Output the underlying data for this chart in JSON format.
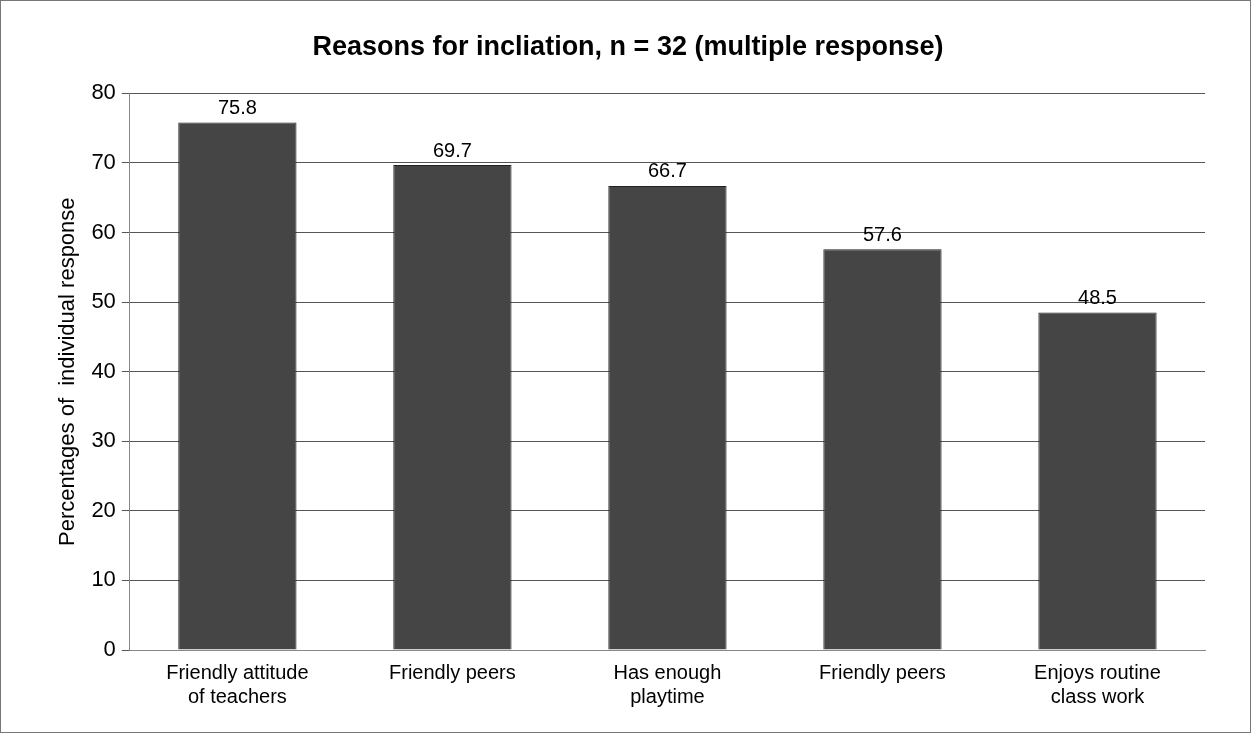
{
  "chart_data": {
    "type": "bar",
    "title": "Reasons for incliation, n = 32 (multiple response)",
    "ylabel": "Percentages of  individual response",
    "categories": [
      "Friendly attitude of teachers",
      "Friendly peers",
      "Has enough playtime",
      "Friendly peers",
      "Enjoys routine class work"
    ],
    "values": [
      75.8,
      69.7,
      66.7,
      57.6,
      48.5
    ],
    "color": "#454545",
    "ylim": [
      0,
      80
    ],
    "yticks": [
      0,
      10,
      20,
      30,
      40,
      50,
      60,
      70,
      80
    ],
    "grid": "y",
    "data_labels": true,
    "legend": false
  }
}
